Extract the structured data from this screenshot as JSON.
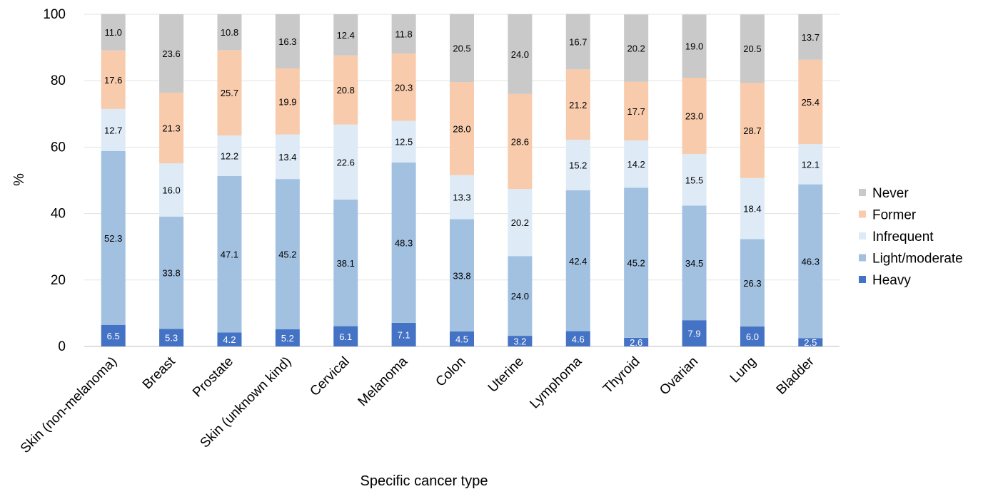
{
  "chart_data": {
    "type": "bar",
    "stacked": true,
    "xlabel": "Specific cancer type",
    "ylabel": "%",
    "ylim": [
      0,
      100
    ],
    "yticks": [
      0,
      20,
      40,
      60,
      80,
      100
    ],
    "grid": true,
    "legend_position": "right",
    "categories": [
      "Skin (non-melanoma)",
      "Breast",
      "Prostate",
      "Skin (unknown kind)",
      "Cervical",
      "Melanoma",
      "Colon",
      "Uterine",
      "Lymphoma",
      "Thyroid",
      "Ovarian",
      "Lung",
      "Bladder"
    ],
    "series": [
      {
        "name": "Heavy",
        "color": "#4472c4",
        "label_color": "#ffffff",
        "values": [
          6.5,
          5.3,
          4.2,
          5.2,
          6.1,
          7.1,
          4.5,
          3.2,
          4.6,
          2.6,
          7.9,
          6.0,
          2.5
        ]
      },
      {
        "name": "Light/moderate",
        "color": "#a2c1e1",
        "label_color": "#000000",
        "values": [
          52.3,
          33.8,
          47.1,
          45.2,
          38.1,
          48.3,
          33.8,
          24.0,
          42.4,
          45.2,
          34.5,
          26.3,
          46.3
        ]
      },
      {
        "name": "Infrequent",
        "color": "#deebf7",
        "label_color": "#000000",
        "values": [
          12.7,
          16.0,
          12.2,
          13.4,
          22.6,
          12.5,
          13.3,
          20.2,
          15.2,
          14.2,
          15.5,
          18.4,
          12.1
        ]
      },
      {
        "name": "Former",
        "color": "#f7cbac",
        "label_color": "#000000",
        "values": [
          17.6,
          21.3,
          25.7,
          19.9,
          20.8,
          20.3,
          28.0,
          28.6,
          21.2,
          17.7,
          23.0,
          28.7,
          25.4
        ]
      },
      {
        "name": "Never",
        "color": "#c9c9c9",
        "label_color": "#000000",
        "values": [
          11.0,
          23.6,
          10.8,
          16.3,
          12.4,
          11.8,
          20.5,
          24.0,
          16.7,
          20.2,
          19.0,
          20.5,
          13.7
        ]
      }
    ],
    "legend_order": [
      "Never",
      "Former",
      "Infrequent",
      "Light/moderate",
      "Heavy"
    ]
  }
}
